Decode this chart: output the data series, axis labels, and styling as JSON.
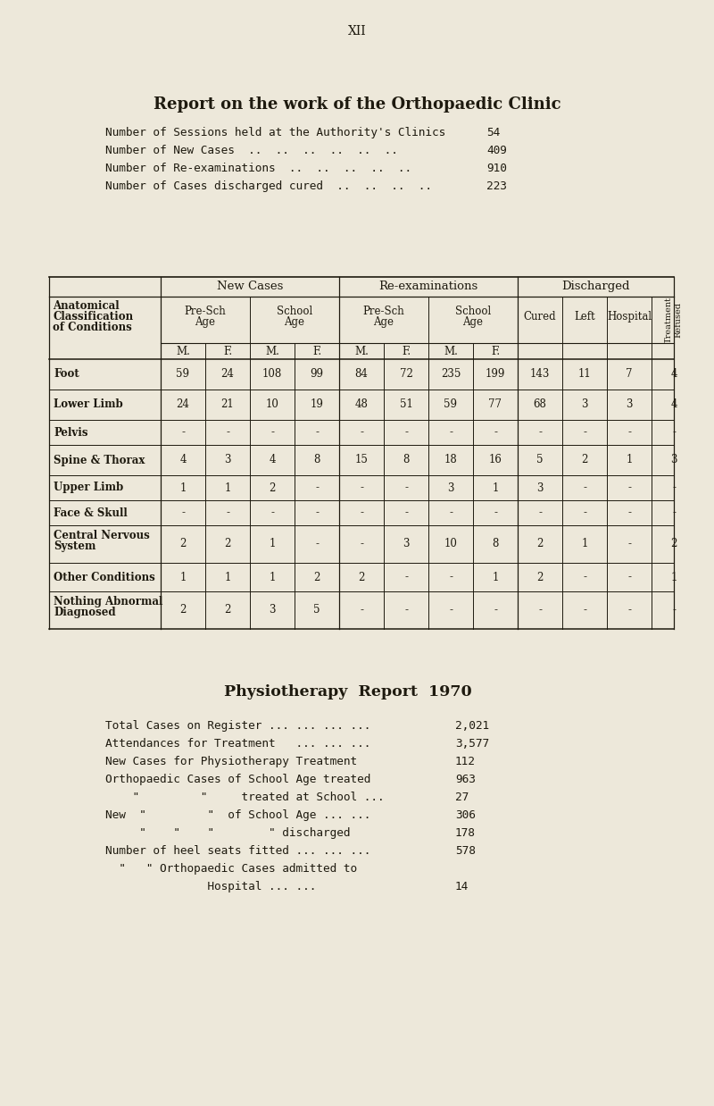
{
  "page_number": "XII",
  "bg_color": "#ede8da",
  "title": "Report on the work of the Orthopaedic Clinic",
  "summary_lines": [
    [
      "Number of Sessions held at the Authority's Clinics",
      "54"
    ],
    [
      "Number of New Cases  ..  ..  ..  ..  ..  ..",
      "409"
    ],
    [
      "Number of Re-examinations  ..  ..  ..  ..  ..",
      "910"
    ],
    [
      "Number of Cases discharged cured  ..  ..  ..  ..",
      "223"
    ]
  ],
  "table_rows": [
    [
      "Foot",
      "59",
      "24",
      "108",
      "99",
      "84",
      "72",
      "235",
      "199",
      "143",
      "11",
      "7",
      "4"
    ],
    [
      "Lower Limb",
      "24",
      "21",
      "10",
      "19",
      "48",
      "51",
      "59",
      "77",
      "68",
      "3",
      "3",
      "4"
    ],
    [
      "Pelvis",
      "-",
      "-",
      "-",
      "-",
      "-",
      "-",
      "-",
      "-",
      "-",
      "-",
      "-",
      "-"
    ],
    [
      "Spine & Thorax",
      "4",
      "3",
      "4",
      "8",
      "15",
      "8",
      "18",
      "16",
      "5",
      "2",
      "1",
      "3"
    ],
    [
      "Upper Limb",
      "1",
      "1",
      "2",
      "-",
      "-",
      "-",
      "3",
      "1",
      "3",
      "-",
      "-",
      "-"
    ],
    [
      "Face & Skull",
      "-",
      "-",
      "-",
      "-",
      "-",
      "-",
      "-",
      "-",
      "-",
      "-",
      "-",
      "-"
    ],
    [
      "Central Nervous\nSystem",
      "2",
      "2",
      "1",
      "-",
      "-",
      "3",
      "10",
      "8",
      "2",
      "1",
      "-",
      "2"
    ],
    [
      "Other Conditions",
      "1",
      "1",
      "1",
      "2",
      "2",
      "-",
      "-",
      "1",
      "2",
      "-",
      "-",
      "1"
    ],
    [
      "Nothing Abnormal\nDiagnosed",
      "2",
      "2",
      "3",
      "5",
      "-",
      "-",
      "-",
      "-",
      "-",
      "-",
      "-",
      "-"
    ]
  ],
  "physio_title": "Physiotherapy  Report  1970",
  "physio_lines": [
    [
      "Total Cases on Register ... ... ... ...",
      "2,021"
    ],
    [
      "Attendances for Treatment   ... ... ...",
      "3,577"
    ],
    [
      "New Cases for Physiotherapy Treatment",
      "112"
    ],
    [
      "Orthopaedic Cases of School Age treated",
      "963"
    ],
    [
      "    \"         \"     treated at School ...",
      "27"
    ],
    [
      "New  \"         \"  of School Age ... ...",
      "306"
    ],
    [
      "     \"    \"    \"        \" discharged",
      "178"
    ],
    [
      "Number of heel seats fitted ... ... ...",
      "578"
    ],
    [
      "  \"   \" Orthopaedic Cases admitted to",
      ""
    ],
    [
      "               Hospital ... ...",
      "14"
    ]
  ],
  "text_color": "#1e1a0f",
  "line_color": "#1e1a0f"
}
